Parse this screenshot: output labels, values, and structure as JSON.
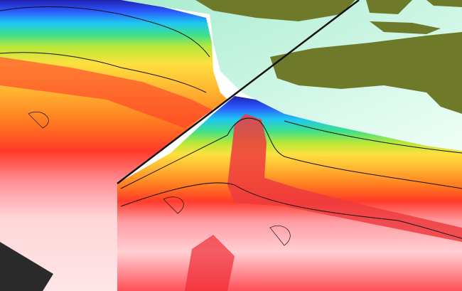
{
  "colors": {
    "background": "#ffffff",
    "seafloor_mint": "#c8f0dc",
    "terrain": "#6e7a2a",
    "base_rock": "#ffd6d8",
    "deep_red": "#ef2b35",
    "bands": [
      "#2020b0",
      "#2a5cff",
      "#1ec8f0",
      "#3fe08a",
      "#b8e838",
      "#ffe040",
      "#ffb030",
      "#ff7a20",
      "#ff3a2a"
    ],
    "trench_line": "#111111",
    "shadow": "#2a2a2a"
  }
}
